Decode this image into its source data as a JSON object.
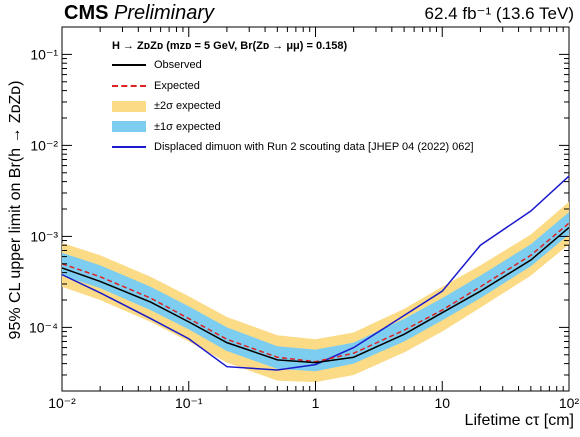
{
  "header": {
    "experiment": "CMS",
    "status": "Preliminary",
    "lumi": "62.4 fb⁻¹ (13.6 TeV)"
  },
  "legend": {
    "header": "H → ZᴅZᴅ (mᴢᴅ = 5 GeV, Br(Zᴅ → μμ) = 0.158)",
    "entries": [
      {
        "label": "Observed",
        "style": "line",
        "color": "#000000"
      },
      {
        "label": "Expected",
        "style": "dash",
        "color": "#dd2222"
      },
      {
        "label": "±2σ expected",
        "style": "box",
        "color": "#fcdb86"
      },
      {
        "label": "±1σ expected",
        "style": "box",
        "color": "#7ccdf0"
      },
      {
        "label": "Displaced dimuon with Run 2 scouting data [JHEP 04 (2022) 062]",
        "style": "line",
        "color": "#1a1acc"
      }
    ]
  },
  "chart_data": {
    "type": "line",
    "title": "",
    "xlabel": "Lifetime cτ [cm]",
    "ylabel": "95% CL upper limit on Br(h → ZᴅZᴅ)",
    "xscale": "log",
    "yscale": "log",
    "xlim": [
      0.01,
      100
    ],
    "ylim": [
      2e-05,
      0.2
    ],
    "xticks": [
      0.01,
      0.1,
      1,
      10,
      100
    ],
    "xtick_labels": [
      "10⁻²",
      "10⁻¹",
      "1",
      "10",
      "10²"
    ],
    "yticks": [
      0.0001,
      0.001,
      0.01,
      0.1
    ],
    "ytick_labels": [
      "10⁻⁴",
      "10⁻³",
      "10⁻²",
      "10⁻¹"
    ],
    "grid": false,
    "legend_position": "top-left",
    "x": [
      0.01,
      0.02,
      0.05,
      0.1,
      0.2,
      0.5,
      1,
      2,
      5,
      10,
      20,
      50,
      100
    ],
    "series": [
      {
        "name": "Observed",
        "values": [
          0.00045,
          0.00032,
          0.00019,
          0.000115,
          6.8e-05,
          4.4e-05,
          4.1e-05,
          4.7e-05,
          8.4e-05,
          0.000145,
          0.00025,
          0.00055,
          0.00125
        ]
      },
      {
        "name": "Expected",
        "values": [
          0.0005,
          0.00036,
          0.00021,
          0.000125,
          7.4e-05,
          4.7e-05,
          4.2e-05,
          5.2e-05,
          9.3e-05,
          0.000155,
          0.00028,
          0.00062,
          0.0014
        ]
      },
      {
        "name": "Displaced dimuon with Run 2 scouting data [JHEP 04 (2022) 062]",
        "values": [
          0.00038,
          0.00024,
          0.000125,
          7.5e-05,
          3.7e-05,
          3.4e-05,
          3.9e-05,
          6e-05,
          0.000135,
          0.00025,
          0.0008,
          0.0019,
          0.0046
        ]
      }
    ],
    "bands": [
      {
        "name": "±2σ expected",
        "low": [
          0.00028,
          0.0002,
          0.000115,
          7e-05,
          4.1e-05,
          2.6e-05,
          2.5e-05,
          3e-05,
          5.3e-05,
          9e-05,
          0.000165,
          0.00037,
          0.00082
        ],
        "high": [
          0.00085,
          0.00062,
          0.00036,
          0.00022,
          0.00013,
          8.2e-05,
          7.4e-05,
          8.8e-05,
          0.00016,
          0.00028,
          0.00048,
          0.00105,
          0.0024
        ]
      },
      {
        "name": "±1σ expected",
        "low": [
          0.00037,
          0.00027,
          0.000155,
          9.5e-05,
          5.5e-05,
          3.5e-05,
          3.3e-05,
          4e-05,
          7e-05,
          0.00012,
          0.00021,
          0.00047,
          0.00105
        ],
        "high": [
          0.00066,
          0.00048,
          0.00028,
          0.00017,
          0.0001,
          6.2e-05,
          5.7e-05,
          6.8e-05,
          0.000124,
          0.00021,
          0.00037,
          0.00082,
          0.00185
        ]
      }
    ]
  }
}
